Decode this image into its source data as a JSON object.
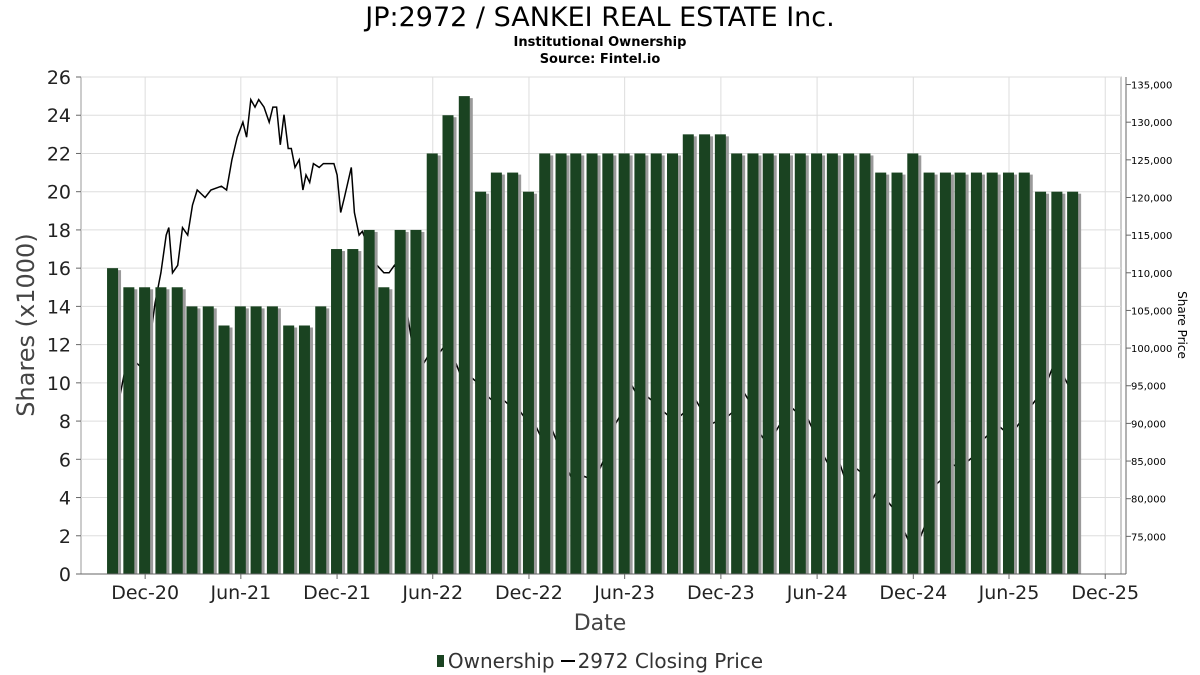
{
  "title": "JP:2972 / SANKEI REAL ESTATE Inc.",
  "subtitle": "Institutional Ownership",
  "source": "Source: Fintel.io",
  "colors": {
    "bar": "#1a4321",
    "bar_shadow": "#9a9a9a",
    "line": "#000000",
    "grid": "#dddddd"
  },
  "chart_data": {
    "type": "bar",
    "xlabel": "Date",
    "ylabel": "Shares (x1000)",
    "y2label": "Share Price",
    "ylim": [
      0,
      26
    ],
    "y2lim": [
      70000,
      136000
    ],
    "yticks": [
      0,
      2,
      4,
      6,
      8,
      10,
      12,
      14,
      16,
      18,
      20,
      22,
      24,
      26
    ],
    "y2ticks": [
      "75,000",
      "80,000",
      "85,000",
      "90,000",
      "95,000",
      "100,000",
      "105,000",
      "110,000",
      "115,000",
      "120,000",
      "125,000",
      "130,000",
      "135,000"
    ],
    "y2tick_values": [
      75000,
      80000,
      85000,
      90000,
      95000,
      100000,
      105000,
      110000,
      115000,
      120000,
      125000,
      130000,
      135000
    ],
    "xlim": [
      "2020-08-01",
      "2025-12-31"
    ],
    "xticks": [
      "Dec-20",
      "Jun-21",
      "Dec-21",
      "Jun-22",
      "Dec-22",
      "Jun-23",
      "Dec-23",
      "Jun-24",
      "Dec-24",
      "Jun-25",
      "Dec-25"
    ],
    "xtick_dates": [
      "2020-12-01",
      "2021-06-01",
      "2021-12-01",
      "2022-06-01",
      "2022-12-01",
      "2023-06-01",
      "2023-12-01",
      "2024-06-01",
      "2024-12-01",
      "2025-06-01",
      "2025-12-01"
    ],
    "grid": true,
    "legend_position": "bottom",
    "series": [
      {
        "name": "Ownership",
        "kind": "bar",
        "dates": [
          "2020-09-30",
          "2020-10-31",
          "2020-11-30",
          "2020-12-31",
          "2021-01-31",
          "2021-02-28",
          "2021-03-31",
          "2021-04-30",
          "2021-05-31",
          "2021-06-30",
          "2021-07-31",
          "2021-08-31",
          "2021-09-30",
          "2021-10-31",
          "2021-11-30",
          "2021-12-31",
          "2022-01-31",
          "2022-02-28",
          "2022-03-31",
          "2022-04-30",
          "2022-05-31",
          "2022-06-30",
          "2022-07-31",
          "2022-08-31",
          "2022-09-30",
          "2022-10-31",
          "2022-11-30",
          "2022-12-31",
          "2023-01-31",
          "2023-02-28",
          "2023-03-31",
          "2023-04-30",
          "2023-05-31",
          "2023-06-30",
          "2023-07-31",
          "2023-08-31",
          "2023-09-30",
          "2023-10-31",
          "2023-11-30",
          "2023-12-31",
          "2024-01-31",
          "2024-02-29",
          "2024-03-31",
          "2024-04-30",
          "2024-05-31",
          "2024-06-30",
          "2024-07-31",
          "2024-08-31",
          "2024-09-30",
          "2024-10-31",
          "2024-11-30",
          "2024-12-31",
          "2025-01-31",
          "2025-02-28",
          "2025-03-31",
          "2025-04-30",
          "2025-05-31",
          "2025-06-30",
          "2025-07-31",
          "2025-08-31",
          "2025-09-30"
        ],
        "values": [
          16,
          15,
          15,
          15,
          15,
          14,
          14,
          13,
          14,
          14,
          14,
          13,
          13,
          14,
          17,
          17,
          18,
          15,
          18,
          18,
          22,
          24,
          25,
          20,
          21,
          21,
          20,
          22,
          22,
          22,
          22,
          22,
          22,
          22,
          22,
          22,
          23,
          23,
          23,
          22,
          22,
          22,
          22,
          22,
          22,
          22,
          22,
          22,
          21,
          21,
          22,
          21,
          21,
          21,
          21,
          21,
          21,
          21,
          20,
          20,
          20
        ]
      },
      {
        "name": "2972 Closing Price",
        "kind": "line",
        "points": [
          [
            "2020-09-30",
            96000
          ],
          [
            "2020-10-15",
            94000
          ],
          [
            "2020-11-01",
            100000
          ],
          [
            "2020-11-15",
            98000
          ],
          [
            "2020-12-01",
            97000
          ],
          [
            "2020-12-10",
            101000
          ],
          [
            "2020-12-20",
            106000
          ],
          [
            "2020-12-31",
            110000
          ],
          [
            "2021-01-10",
            115000
          ],
          [
            "2021-01-15",
            116000
          ],
          [
            "2021-01-22",
            110000
          ],
          [
            "2021-02-01",
            111000
          ],
          [
            "2021-02-10",
            116000
          ],
          [
            "2021-02-20",
            115000
          ],
          [
            "2021-03-01",
            119000
          ],
          [
            "2021-03-10",
            121000
          ],
          [
            "2021-03-25",
            120000
          ],
          [
            "2021-04-05",
            121000
          ],
          [
            "2021-04-25",
            121500
          ],
          [
            "2021-05-05",
            121000
          ],
          [
            "2021-05-15",
            125000
          ],
          [
            "2021-05-25",
            128000
          ],
          [
            "2021-06-05",
            130000
          ],
          [
            "2021-06-12",
            128000
          ],
          [
            "2021-06-20",
            133000
          ],
          [
            "2021-06-28",
            132000
          ],
          [
            "2021-07-05",
            133000
          ],
          [
            "2021-07-15",
            132000
          ],
          [
            "2021-07-25",
            130000
          ],
          [
            "2021-08-01",
            132000
          ],
          [
            "2021-08-08",
            132000
          ],
          [
            "2021-08-15",
            127000
          ],
          [
            "2021-08-22",
            131000
          ],
          [
            "2021-08-30",
            126500
          ],
          [
            "2021-09-05",
            126500
          ],
          [
            "2021-09-12",
            124000
          ],
          [
            "2021-09-20",
            125000
          ],
          [
            "2021-09-27",
            121000
          ],
          [
            "2021-10-03",
            123000
          ],
          [
            "2021-10-10",
            122000
          ],
          [
            "2021-10-17",
            124500
          ],
          [
            "2021-10-28",
            124000
          ],
          [
            "2021-11-05",
            124500
          ],
          [
            "2021-11-15",
            124500
          ],
          [
            "2021-11-25",
            124500
          ],
          [
            "2021-12-01",
            123000
          ],
          [
            "2021-12-08",
            118000
          ],
          [
            "2021-12-15",
            120000
          ],
          [
            "2021-12-28",
            124000
          ],
          [
            "2022-01-03",
            118000
          ],
          [
            "2022-01-12",
            115000
          ],
          [
            "2022-01-18",
            115500
          ],
          [
            "2022-02-01",
            113000
          ],
          [
            "2022-02-15",
            111000
          ],
          [
            "2022-02-28",
            110000
          ],
          [
            "2022-03-10",
            110000
          ],
          [
            "2022-03-20",
            111000
          ],
          [
            "2022-04-01",
            110000
          ],
          [
            "2022-04-15",
            104000
          ],
          [
            "2022-05-01",
            97000
          ],
          [
            "2022-05-15",
            98000
          ],
          [
            "2022-06-01",
            100000
          ],
          [
            "2022-06-15",
            99500
          ],
          [
            "2022-07-01",
            101000
          ],
          [
            "2022-07-15",
            98000
          ],
          [
            "2022-08-01",
            95000
          ],
          [
            "2022-08-15",
            96000
          ],
          [
            "2022-09-01",
            95000
          ],
          [
            "2022-09-15",
            93500
          ],
          [
            "2022-10-01",
            92500
          ],
          [
            "2022-10-15",
            93000
          ],
          [
            "2022-11-01",
            92000
          ],
          [
            "2022-11-15",
            91500
          ],
          [
            "2022-12-01",
            90000
          ],
          [
            "2022-12-15",
            89500
          ],
          [
            "2023-01-01",
            87000
          ],
          [
            "2023-01-15",
            89000
          ],
          [
            "2023-02-01",
            86000
          ],
          [
            "2023-02-15",
            83500
          ],
          [
            "2023-03-01",
            81500
          ],
          [
            "2023-03-15",
            83000
          ],
          [
            "2023-04-01",
            82500
          ],
          [
            "2023-04-15",
            84000
          ],
          [
            "2023-05-01",
            86500
          ],
          [
            "2023-05-15",
            90000
          ],
          [
            "2023-06-01",
            92000
          ],
          [
            "2023-06-15",
            95000
          ],
          [
            "2023-07-01",
            93000
          ],
          [
            "2023-07-15",
            93500
          ],
          [
            "2023-08-01",
            92500
          ],
          [
            "2023-08-15",
            91500
          ],
          [
            "2023-09-01",
            90500
          ],
          [
            "2023-09-15",
            91000
          ],
          [
            "2023-10-01",
            92000
          ],
          [
            "2023-10-15",
            93000
          ],
          [
            "2023-11-01",
            91000
          ],
          [
            "2023-11-15",
            90000
          ],
          [
            "2023-12-01",
            90500
          ],
          [
            "2023-12-15",
            91000
          ],
          [
            "2024-01-01",
            92000
          ],
          [
            "2024-01-15",
            94000
          ],
          [
            "2024-02-01",
            92000
          ],
          [
            "2024-02-15",
            88500
          ],
          [
            "2024-03-01",
            87000
          ],
          [
            "2024-03-15",
            89000
          ],
          [
            "2024-04-01",
            91000
          ],
          [
            "2024-04-15",
            92000
          ],
          [
            "2024-05-01",
            91000
          ],
          [
            "2024-05-15",
            90500
          ],
          [
            "2024-06-01",
            88000
          ],
          [
            "2024-06-15",
            85500
          ],
          [
            "2024-07-01",
            83500
          ],
          [
            "2024-07-15",
            84500
          ],
          [
            "2024-08-01",
            81000
          ],
          [
            "2024-08-15",
            84000
          ],
          [
            "2024-09-01",
            83000
          ],
          [
            "2024-09-15",
            80000
          ],
          [
            "2024-10-01",
            82000
          ],
          [
            "2024-10-15",
            79500
          ],
          [
            "2024-11-01",
            78000
          ],
          [
            "2024-11-15",
            75500
          ],
          [
            "2024-12-01",
            73000
          ],
          [
            "2024-12-15",
            75000
          ],
          [
            "2025-01-01",
            78000
          ],
          [
            "2025-01-15",
            82000
          ],
          [
            "2025-02-01",
            83000
          ],
          [
            "2025-02-15",
            84500
          ],
          [
            "2025-03-01",
            84000
          ],
          [
            "2025-03-15",
            85000
          ],
          [
            "2025-04-01",
            86000
          ],
          [
            "2025-04-15",
            88000
          ],
          [
            "2025-05-01",
            89000
          ],
          [
            "2025-05-15",
            89500
          ],
          [
            "2025-06-01",
            88500
          ],
          [
            "2025-06-15",
            89500
          ],
          [
            "2025-07-01",
            91000
          ],
          [
            "2025-07-15",
            92500
          ],
          [
            "2025-08-01",
            94000
          ],
          [
            "2025-08-15",
            96000
          ],
          [
            "2025-09-01",
            99000
          ],
          [
            "2025-09-15",
            96000
          ],
          [
            "2025-09-30",
            94000
          ]
        ]
      }
    ]
  }
}
